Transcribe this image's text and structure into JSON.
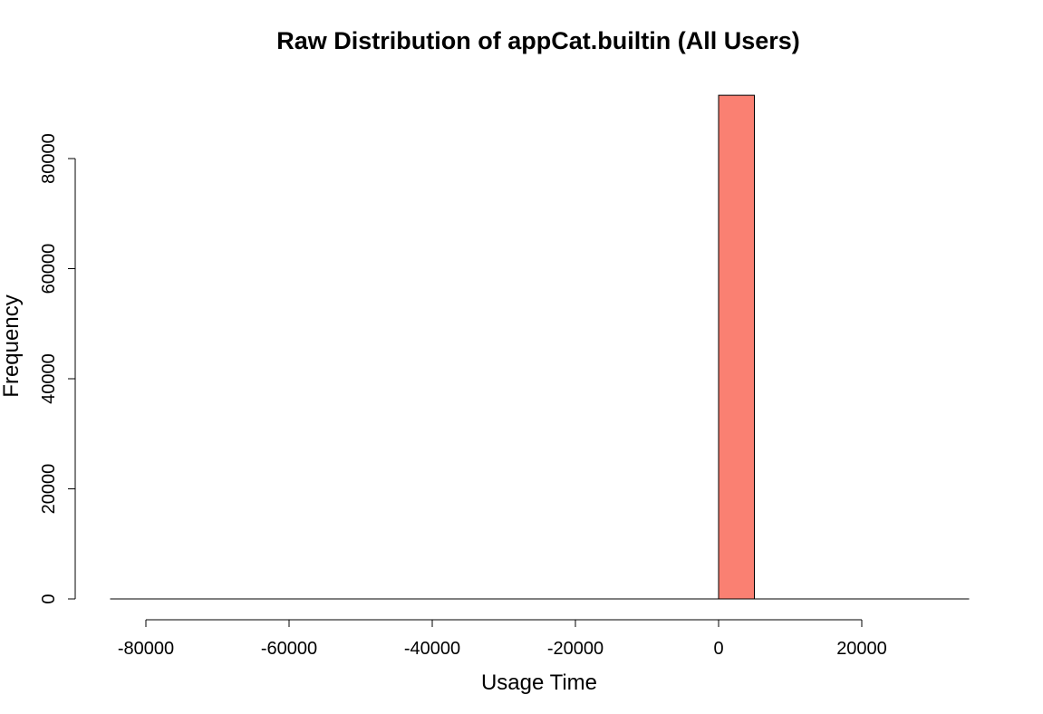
{
  "chart_data": {
    "type": "bar",
    "title": "Raw Distribution of appCat.builtin (All Users)",
    "xlabel": "Usage Time",
    "ylabel": "Frequency",
    "xlim": [
      -85000,
      35000
    ],
    "ylim": [
      0,
      91000
    ],
    "x_ticks": [
      -80000,
      -60000,
      -40000,
      -20000,
      0,
      20000
    ],
    "x_tick_labels": [
      "-80000",
      "-60000",
      "-40000",
      "-20000",
      "0",
      "20000"
    ],
    "y_ticks": [
      0,
      20000,
      40000,
      60000,
      80000
    ],
    "y_tick_labels": [
      "0",
      "20000",
      "40000",
      "60000",
      "80000"
    ],
    "bins": [
      {
        "start": -85000,
        "end": 0,
        "count": 0
      },
      {
        "start": 0,
        "end": 5000,
        "count": 91500
      },
      {
        "start": 5000,
        "end": 35000,
        "count": 0
      }
    ],
    "bar_color": "#FA8072",
    "grid": false,
    "legend": "none"
  }
}
